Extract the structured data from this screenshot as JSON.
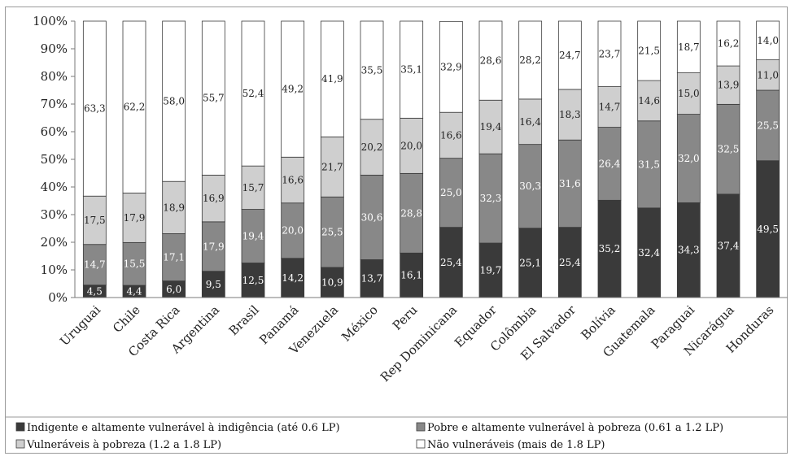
{
  "chart_data": {
    "type": "bar",
    "stacked": true,
    "categories": [
      "Uruguai",
      "Chile",
      "Costa Rica",
      "Argentina",
      "Brasil",
      "Panamá",
      "Venezuela",
      "México",
      "Peru",
      "Rep Dominicana",
      "Equador",
      "Colômbia",
      "El Salvador",
      "Bolívia",
      "Guatemala",
      "Paraguai",
      "Nicarágua",
      "Honduras"
    ],
    "series": [
      {
        "name": "Indigente e altamente vulnerável à indigência (até 0.6 LP)",
        "color": "#3a3a3a",
        "label_color": "#ffffff",
        "values": [
          4.5,
          4.4,
          6.0,
          9.5,
          12.5,
          14.2,
          10.9,
          13.7,
          16.1,
          25.4,
          19.7,
          25.1,
          25.4,
          35.2,
          32.4,
          34.3,
          37.4,
          49.5
        ],
        "labels": [
          "4,5",
          "4,4",
          "6,0",
          "9,5",
          "12,5",
          "14,2",
          "10,9",
          "13,7",
          "16,1",
          "25,4",
          "19,7",
          "25,1",
          "25,4",
          "35,2",
          "32,4",
          "34,3",
          "37,4",
          "49,5"
        ]
      },
      {
        "name": "Pobre e altamente vulnerável à pobreza (0.61 a 1.2 LP)",
        "color": "#888888",
        "label_color": "#ffffff",
        "values": [
          14.7,
          15.5,
          17.1,
          17.9,
          19.4,
          20.0,
          25.5,
          30.6,
          28.8,
          25.0,
          32.3,
          30.3,
          31.6,
          26.4,
          31.5,
          32.0,
          32.5,
          25.5
        ],
        "labels": [
          "14,7",
          "15,5",
          "17,1",
          "17,9",
          "19,4",
          "20,0",
          "25,5",
          "30,6",
          "28,8",
          "25,0",
          "32,3",
          "30,3",
          "31,6",
          "26,4",
          "31,5",
          "32,0",
          "32,5",
          "25,5"
        ]
      },
      {
        "name": "Vulneráveis à pobreza (1.2 a 1.8 LP)",
        "color": "#cfcfcf",
        "label_color": "#222222",
        "values": [
          17.5,
          17.9,
          18.9,
          16.9,
          15.7,
          16.6,
          21.7,
          20.2,
          20.0,
          16.6,
          19.4,
          16.4,
          18.3,
          14.7,
          14.6,
          15.0,
          13.9,
          11.0
        ],
        "labels": [
          "17,5",
          "17,9",
          "18,9",
          "16,9",
          "15,7",
          "16,6",
          "21,7",
          "20,2",
          "20,0",
          "16,6",
          "19,4",
          "16,4",
          "18,3",
          "14,7",
          "14,6",
          "15,0",
          "13,9",
          "11,0"
        ]
      },
      {
        "name": "Não vulneráveis (mais de 1.8 LP)",
        "color": "#ffffff",
        "label_color": "#222222",
        "values": [
          63.3,
          62.2,
          58.0,
          55.7,
          52.4,
          49.2,
          41.9,
          35.5,
          35.1,
          32.9,
          28.6,
          28.2,
          24.7,
          23.7,
          21.5,
          18.7,
          16.2,
          14.0
        ],
        "labels": [
          "63,3",
          "62,2",
          "58,0",
          "55,7",
          "52,4",
          "49,2",
          "41,9",
          "35,5",
          "35,1",
          "32,9",
          "28,6",
          "28,2",
          "24,7",
          "23,7",
          "21,5",
          "18,7",
          "16,2",
          "14,0"
        ]
      }
    ],
    "yticks": [
      "0%",
      "10%",
      "20%",
      "30%",
      "40%",
      "50%",
      "60%",
      "70%",
      "80%",
      "90%",
      "100%"
    ],
    "ylim": [
      0,
      100
    ],
    "grid": false,
    "legend_position": "bottom"
  }
}
